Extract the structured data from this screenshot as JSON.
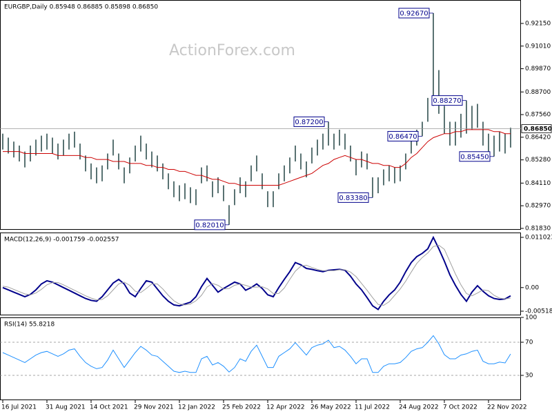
{
  "chart_data": [
    {
      "type": "ohlc",
      "title": "EURGBP,Daily  0.85948 0.86885 0.85898 0.86850",
      "watermark": "ActionForex.com",
      "color": "#2f4f4f",
      "high": [
        0.866,
        0.864,
        0.862,
        0.86,
        0.857,
        0.86,
        0.863,
        0.865,
        0.866,
        0.864,
        0.861,
        0.863,
        0.866,
        0.867,
        0.861,
        0.855,
        0.851,
        0.849,
        0.85,
        0.856,
        0.863,
        0.856,
        0.849,
        0.854,
        0.86,
        0.865,
        0.861,
        0.857,
        0.855,
        0.851,
        0.846,
        0.842,
        0.84,
        0.841,
        0.839,
        0.838,
        0.849,
        0.85,
        0.842,
        0.844,
        0.84,
        0.83,
        0.838,
        0.844,
        0.842,
        0.85,
        0.855,
        0.846,
        0.837,
        0.837,
        0.846,
        0.85,
        0.854,
        0.86,
        0.856,
        0.852,
        0.859,
        0.863,
        0.866,
        0.872,
        0.866,
        0.868,
        0.866,
        0.86,
        0.853,
        0.857,
        0.856,
        0.844,
        0.844,
        0.848,
        0.85,
        0.849,
        0.85,
        0.856,
        0.864,
        0.868,
        0.872,
        0.884,
        0.9267,
        0.898,
        0.88,
        0.872,
        0.872,
        0.876,
        0.8827,
        0.88,
        0.881,
        0.872,
        0.866,
        0.865,
        0.867,
        0.866,
        0.869
      ],
      "low": [
        0.858,
        0.856,
        0.854,
        0.852,
        0.849,
        0.852,
        0.855,
        0.857,
        0.858,
        0.856,
        0.853,
        0.855,
        0.858,
        0.859,
        0.853,
        0.847,
        0.843,
        0.841,
        0.842,
        0.848,
        0.855,
        0.848,
        0.841,
        0.846,
        0.852,
        0.857,
        0.853,
        0.849,
        0.847,
        0.843,
        0.838,
        0.834,
        0.832,
        0.833,
        0.831,
        0.83,
        0.841,
        0.842,
        0.834,
        0.836,
        0.832,
        0.8201,
        0.83,
        0.836,
        0.834,
        0.842,
        0.847,
        0.838,
        0.829,
        0.829,
        0.838,
        0.842,
        0.846,
        0.852,
        0.848,
        0.844,
        0.851,
        0.855,
        0.858,
        0.86,
        0.858,
        0.86,
        0.858,
        0.852,
        0.845,
        0.849,
        0.848,
        0.8338,
        0.836,
        0.84,
        0.842,
        0.841,
        0.842,
        0.848,
        0.856,
        0.86,
        0.8647,
        0.872,
        0.88,
        0.876,
        0.866,
        0.86,
        0.86,
        0.864,
        0.866,
        0.868,
        0.869,
        0.86,
        0.855,
        0.8545,
        0.857,
        0.856,
        0.859
      ],
      "overlay": {
        "color": "#cc0000",
        "values": [
          0.857,
          0.857,
          0.857,
          0.857,
          0.856,
          0.856,
          0.856,
          0.856,
          0.856,
          0.856,
          0.855,
          0.855,
          0.855,
          0.855,
          0.855,
          0.854,
          0.854,
          0.853,
          0.853,
          0.853,
          0.852,
          0.852,
          0.852,
          0.851,
          0.851,
          0.851,
          0.85,
          0.85,
          0.849,
          0.849,
          0.848,
          0.848,
          0.847,
          0.847,
          0.846,
          0.845,
          0.845,
          0.844,
          0.843,
          0.843,
          0.842,
          0.841,
          0.841,
          0.84,
          0.84,
          0.84,
          0.84,
          0.84,
          0.84,
          0.84,
          0.84,
          0.841,
          0.842,
          0.843,
          0.844,
          0.845,
          0.846,
          0.848,
          0.85,
          0.851,
          0.853,
          0.854,
          0.855,
          0.854,
          0.853,
          0.853,
          0.852,
          0.851,
          0.851,
          0.85,
          0.85,
          0.849,
          0.849,
          0.851,
          0.854,
          0.856,
          0.859,
          0.862,
          0.864,
          0.865,
          0.866,
          0.866,
          0.867,
          0.867,
          0.868,
          0.868,
          0.868,
          0.868,
          0.868,
          0.867,
          0.867,
          0.866,
          0.866
        ]
      },
      "ylim": [
        0.8176,
        0.9333
      ],
      "yticks": [
        {
          "value": 0.9215,
          "label": "0.92150"
        },
        {
          "value": 0.9101,
          "label": "0.91010"
        },
        {
          "value": 0.8987,
          "label": "0.89870"
        },
        {
          "value": 0.887,
          "label": "0.88700"
        },
        {
          "value": 0.8756,
          "label": "0.87560"
        },
        {
          "value": 0.8642,
          "label": "0.86420"
        },
        {
          "value": 0.8528,
          "label": "0.85280"
        },
        {
          "value": 0.8411,
          "label": "0.84110"
        },
        {
          "value": 0.8297,
          "label": "0.82970"
        },
        {
          "value": 0.8183,
          "label": "0.81830"
        }
      ],
      "annotations": [
        {
          "value": 0.9267,
          "label": "0.92670"
        },
        {
          "value": 0.8827,
          "label": "0.88270"
        },
        {
          "value": 0.872,
          "label": "0.87200"
        },
        {
          "value": 0.8647,
          "label": "0.86470"
        },
        {
          "value": 0.8545,
          "label": "0.85450"
        },
        {
          "value": 0.8338,
          "label": "0.83380"
        },
        {
          "value": 0.8201,
          "label": "0.82010"
        }
      ],
      "last_price": {
        "value": 0.8685,
        "label": "0.86850"
      }
    },
    {
      "type": "line",
      "title": "MACD(12,26,9) -0.001759 -0.002557",
      "series": [
        {
          "color": "#00008b",
          "width": 2,
          "values": [
            0.0,
            -0.0005,
            -0.001,
            -0.0015,
            -0.002,
            -0.0015,
            -0.0005,
            0.0008,
            0.0015,
            0.0012,
            0.0006,
            0.0,
            -0.0006,
            -0.0012,
            -0.0018,
            -0.0024,
            -0.0028,
            -0.003,
            -0.002,
            -0.0005,
            0.001,
            0.0018,
            0.0008,
            -0.0012,
            -0.002,
            -0.0002,
            0.0015,
            0.0012,
            -0.0003,
            -0.0018,
            -0.003,
            -0.0038,
            -0.004,
            -0.0036,
            -0.0032,
            -0.002,
            0.0002,
            0.002,
            0.0005,
            -0.001,
            -0.0002,
            0.0005,
            0.0012,
            0.0008,
            -0.0006,
            0.0,
            0.0008,
            -0.0002,
            -0.0016,
            -0.002,
            0.0,
            0.0018,
            0.0035,
            0.0055,
            0.005,
            0.0042,
            0.004,
            0.0037,
            0.0035,
            0.0038,
            0.0039,
            0.004,
            0.0038,
            0.0025,
            0.0008,
            -0.0005,
            -0.0022,
            -0.004,
            -0.0048,
            -0.003,
            -0.0016,
            -0.0005,
            0.0012,
            0.0035,
            0.0055,
            0.0068,
            0.0075,
            0.0085,
            0.011,
            0.0085,
            0.0058,
            0.0028,
            0.0005,
            -0.0015,
            -0.003,
            -0.001,
            0.0004,
            -0.0008,
            -0.0018,
            -0.0024,
            -0.0026,
            -0.0025,
            -0.0018
          ]
        },
        {
          "color": "#a0a0a0",
          "width": 1,
          "values": [
            0.0003,
            0.0001,
            -0.0004,
            -0.0009,
            -0.0014,
            -0.0016,
            -0.0012,
            -0.0004,
            0.0006,
            0.0011,
            0.0011,
            0.0006,
            0.0,
            -0.0006,
            -0.0012,
            -0.0018,
            -0.0023,
            -0.0027,
            -0.0026,
            -0.0018,
            -0.0005,
            0.0008,
            0.0012,
            0.0005,
            -0.0008,
            -0.0011,
            -0.0002,
            0.0008,
            0.0008,
            -0.0003,
            -0.0017,
            -0.0029,
            -0.0036,
            -0.0038,
            -0.0036,
            -0.0029,
            -0.0017,
            0.0001,
            0.0009,
            0.0005,
            -0.0003,
            -0.0002,
            0.0005,
            0.0008,
            0.0005,
            0.0001,
            0.0001,
            0.0002,
            -0.0003,
            -0.0013,
            -0.0013,
            -0.0001,
            0.0018,
            0.0036,
            0.0047,
            0.0049,
            0.0044,
            0.004,
            0.0037,
            0.0037,
            0.0037,
            0.0039,
            0.0039,
            0.0034,
            0.0024,
            0.0009,
            -0.0006,
            -0.0022,
            -0.0037,
            -0.0039,
            -0.0031,
            -0.0017,
            -0.0003,
            0.0014,
            0.0034,
            0.0053,
            0.0066,
            0.0076,
            0.009,
            0.0093,
            0.0084,
            0.0057,
            0.003,
            0.0006,
            -0.0013,
            -0.0018,
            -0.0012,
            -0.0005,
            -0.0007,
            -0.0017,
            -0.0023,
            -0.0025,
            -0.0023
          ]
        }
      ],
      "ylim": [
        -0.00609,
        0.01208
      ],
      "yticks": [
        {
          "value": 0.011023,
          "label": "0.011023"
        },
        {
          "value": 0,
          "label": "0.00"
        },
        {
          "value": -0.005182,
          "label": "-0.005182"
        }
      ]
    },
    {
      "type": "line",
      "title": "RSI(14) 55.8218",
      "categories": [
        "16 Jul 2021",
        null,
        null,
        null,
        null,
        null,
        null,
        null,
        "31 Aug 2021",
        null,
        null,
        null,
        null,
        null,
        null,
        null,
        "14 Oct 2021",
        null,
        null,
        null,
        null,
        null,
        null,
        null,
        "29 Nov 2021",
        null,
        null,
        null,
        null,
        null,
        null,
        null,
        "12 Jan 2022",
        null,
        null,
        null,
        null,
        null,
        null,
        null,
        "25 Feb 2022",
        null,
        null,
        null,
        null,
        null,
        null,
        null,
        "12 Apr 2022",
        null,
        null,
        null,
        null,
        null,
        null,
        null,
        "26 May 2022",
        null,
        null,
        null,
        null,
        null,
        null,
        null,
        "11 Jul 2022",
        null,
        null,
        null,
        null,
        null,
        null,
        null,
        "24 Aug 2022",
        null,
        null,
        null,
        null,
        null,
        null,
        null,
        "7 Oct 2022",
        null,
        null,
        null,
        null,
        null,
        null,
        null,
        "22 Nov 2022",
        null,
        null,
        null,
        null
      ],
      "series": [
        {
          "color": "#1e90ff",
          "width": 1,
          "values": [
            57.5,
            54.5,
            51.5,
            48.5,
            45.5,
            50,
            54.5,
            57.5,
            59,
            56,
            53,
            56,
            60.5,
            62,
            53,
            45.5,
            41,
            38,
            39.5,
            48.5,
            60.5,
            50,
            39.5,
            48.5,
            57.5,
            65,
            60.5,
            54.5,
            53,
            47,
            41,
            35,
            33.5,
            35,
            33.5,
            33.5,
            50,
            53,
            42.5,
            45.5,
            41,
            34,
            39.5,
            50,
            47,
            59,
            66.5,
            53,
            39.5,
            39.5,
            53,
            57.5,
            62,
            69.5,
            62,
            54.5,
            63.5,
            66.5,
            68,
            72.5,
            63.5,
            65,
            60.5,
            53,
            44,
            50,
            50,
            33.5,
            33.5,
            41,
            44,
            44,
            45.5,
            51.5,
            59,
            62,
            63.5,
            70,
            78,
            68,
            55,
            50,
            50,
            54.5,
            56,
            59,
            60.5,
            47,
            44,
            44,
            46,
            45,
            55.8
          ]
        }
      ],
      "ylim": [
        0,
        100
      ],
      "yticks": [
        100,
        70,
        30
      ],
      "grid": true
    }
  ]
}
